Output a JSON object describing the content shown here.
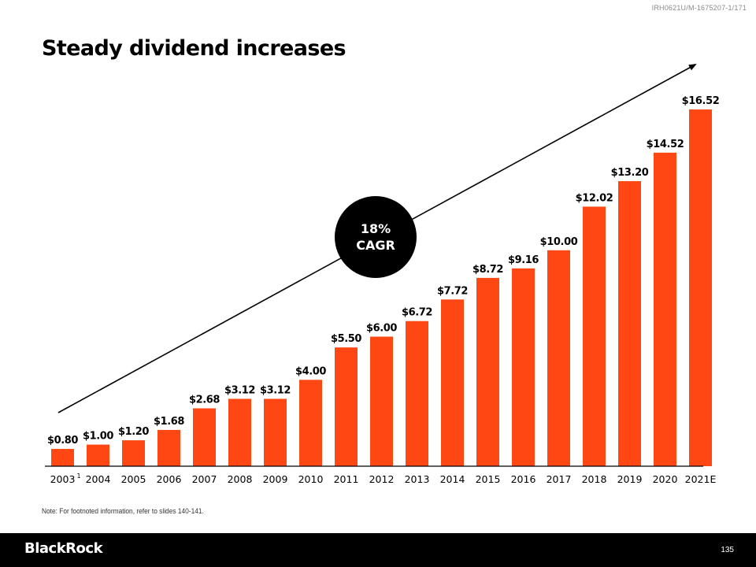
{
  "header": {
    "doc_id": "IRH0621U/M-1675207-1/171",
    "title": "Steady dividend increases"
  },
  "chart_data": {
    "type": "bar",
    "title": "Steady dividend increases",
    "xlabel": "",
    "ylabel": "",
    "ylim": [
      0,
      16.52
    ],
    "grid": false,
    "categories": [
      "2003",
      "2004",
      "2005",
      "2006",
      "2007",
      "2008",
      "2009",
      "2010",
      "2011",
      "2012",
      "2013",
      "2014",
      "2015",
      "2016",
      "2017",
      "2018",
      "2019",
      "2020",
      "2021E"
    ],
    "category_footnotes": {
      "2003": "1"
    },
    "values": [
      0.8,
      1.0,
      1.2,
      1.68,
      2.68,
      3.12,
      3.12,
      4.0,
      5.5,
      6.0,
      6.72,
      7.72,
      8.72,
      9.16,
      10.0,
      12.02,
      13.2,
      14.52,
      16.52
    ],
    "data_labels": [
      "$0.80",
      "$1.00",
      "$1.20",
      "$1.68",
      "$2.68",
      "$3.12",
      "$3.12",
      "$4.00",
      "$5.50",
      "$6.00",
      "$6.72",
      "$7.72",
      "$8.72",
      "$9.16",
      "$10.00",
      "$12.02",
      "$13.20",
      "$14.52",
      "$16.52"
    ],
    "bar_color": "#ff4713",
    "annotation": {
      "type": "trend-arrow-with-badge",
      "badge_line1": "18%",
      "badge_line2": "CAGR"
    }
  },
  "footer": {
    "note": "Note: For footnoted information, refer to slides 140-141.",
    "logo": "BlackRock",
    "page_number": "135"
  }
}
